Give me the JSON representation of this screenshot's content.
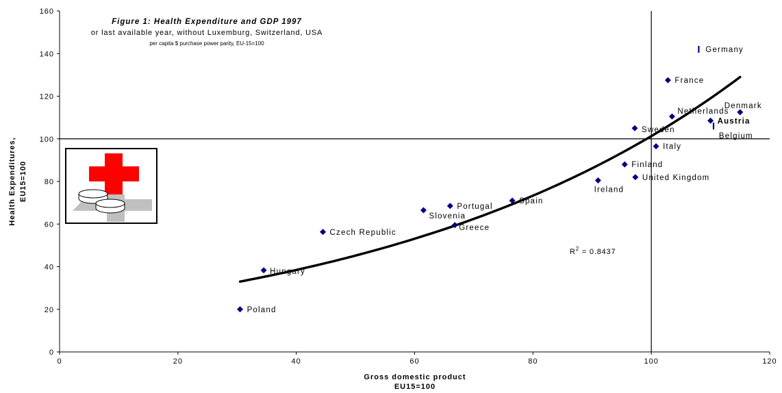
{
  "chart_data": {
    "type": "scatter",
    "title": "Figure 1: Health Expenditure and GDP 1997",
    "subtitle": "or last available year, without Luxemburg, Switzerland, USA",
    "note": "per capita $ purchase power parity, EU-15=100",
    "xlabel": "Gross domestic product",
    "xlabel_sub": "EU15=100",
    "ylabel": "Health Expenditures,",
    "ylabel_sub": "EU15=100",
    "xlim": [
      0,
      120
    ],
    "ylim": [
      0,
      160
    ],
    "x_ticks": [
      "0",
      "20",
      "40",
      "60",
      "80",
      "100",
      "120"
    ],
    "y_ticks": [
      "0",
      "20",
      "40",
      "60",
      "80",
      "100",
      "120",
      "140",
      "160"
    ],
    "reference_lines": {
      "x": 100,
      "y": 100
    },
    "trendline": {
      "type": "exponential",
      "x_start": 30.5,
      "x_end": 115,
      "y_start": 33,
      "y_end": 129,
      "r_squared_label": "R",
      "r_squared_sup": "2",
      "r_squared_value": " = 0.8437"
    },
    "series": [
      {
        "points": [
          {
            "label": "Poland",
            "x": 30.5,
            "y": 20
          },
          {
            "label": "Hungary",
            "x": 34.5,
            "y": 38.3
          },
          {
            "label": "Czech Republic",
            "x": 44.5,
            "y": 56.3
          },
          {
            "label": "Slovenia",
            "x": 61.5,
            "y": 66.5
          },
          {
            "label": "Portugal",
            "x": 66,
            "y": 68.5
          },
          {
            "label": "Greece",
            "x": 66.8,
            "y": 59.5
          },
          {
            "label": "Spain",
            "x": 76.5,
            "y": 71
          },
          {
            "label": "Ireland",
            "x": 91,
            "y": 80.5
          },
          {
            "label": "Finland",
            "x": 95.5,
            "y": 88
          },
          {
            "label": "United Kingdom",
            "x": 97.3,
            "y": 82
          },
          {
            "label": "Sweden",
            "x": 97.2,
            "y": 105
          },
          {
            "label": "Italy",
            "x": 100.8,
            "y": 96.5
          },
          {
            "label": "France",
            "x": 102.8,
            "y": 127.5
          },
          {
            "label": "Netherlands",
            "x": 103.5,
            "y": 110.5
          },
          {
            "label": "Germany",
            "x": 108,
            "y": 142
          },
          {
            "label": "Austria",
            "x": 110,
            "y": 108.5
          },
          {
            "label": "Belgium",
            "x": 110.5,
            "y": 106
          },
          {
            "label": "Denmark",
            "x": 115,
            "y": 112.5
          }
        ]
      }
    ]
  },
  "logo": {
    "name": "red-cross-with-pills-logo",
    "accent_color": "#ff0000"
  },
  "colors": {
    "marker": "#000080",
    "axis": "#000000",
    "trendline": "#000000",
    "background": "#ffffff"
  }
}
